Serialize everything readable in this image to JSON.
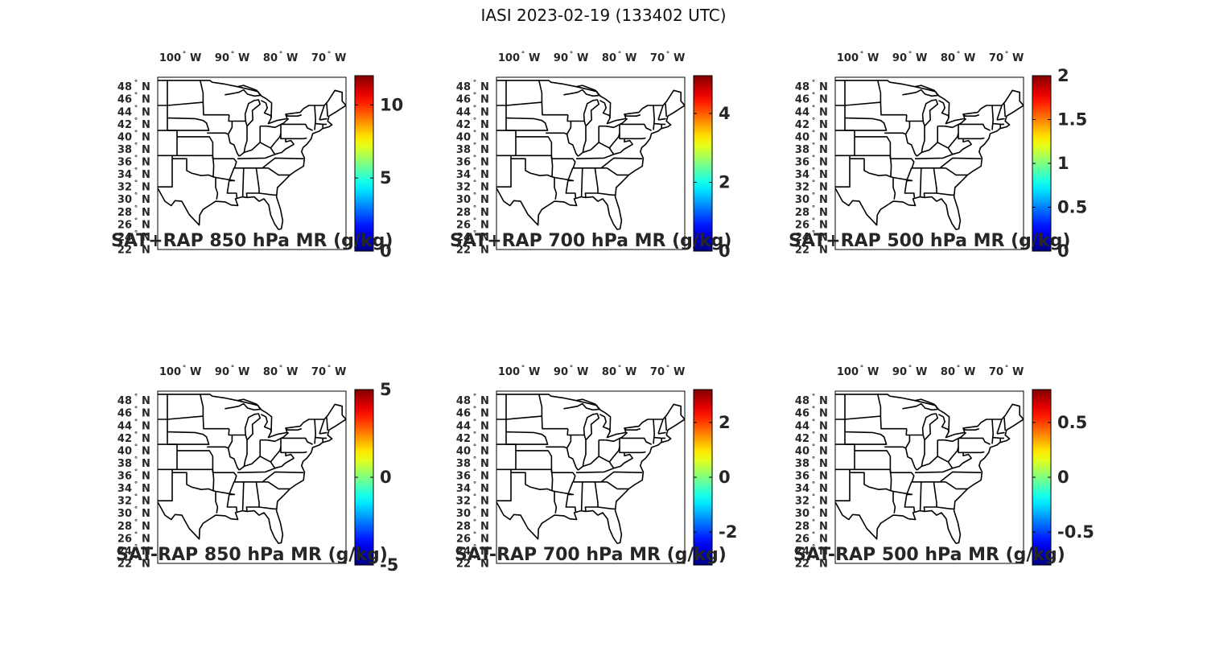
{
  "title": "IASI 2023-02-19 (133402 UTC)",
  "lon_ticks": [
    "100",
    "90",
    "80",
    "70"
  ],
  "lon_suffix": "W",
  "lat_ticks": [
    "48",
    "46",
    "44",
    "42",
    "40",
    "38",
    "36",
    "34",
    "32",
    "30",
    "28",
    "26",
    "24",
    "22"
  ],
  "lat_suffix": "N",
  "degree_symbol": "°",
  "map_extent": {
    "lon": [
      -106,
      -67
    ],
    "lat": [
      22,
      49.5
    ]
  },
  "colormap": "jet",
  "panels": [
    {
      "title": "SAT+RAP 850 hPa MR (g/kg)",
      "cbar": {
        "range": [
          0,
          12
        ],
        "ticks": [
          0,
          5,
          10
        ],
        "labels": [
          "0",
          "5",
          "10"
        ]
      }
    },
    {
      "title": "SAT+RAP 700 hPa MR (g/kg)",
      "cbar": {
        "range": [
          0,
          5.1
        ],
        "ticks": [
          0,
          2,
          4
        ],
        "labels": [
          "0",
          "2",
          "4"
        ]
      }
    },
    {
      "title": "SAT+RAP 500 hPa MR (g/kg)",
      "cbar": {
        "range": [
          0,
          2
        ],
        "ticks": [
          0,
          0.5,
          1,
          1.5,
          2
        ],
        "labels": [
          "0",
          "0.5",
          "1",
          "1.5",
          "2"
        ]
      }
    },
    {
      "title": "SAT-RAP 850 hPa MR (g/kg)",
      "cbar": {
        "range": [
          -5,
          5
        ],
        "ticks": [
          -5,
          0,
          5
        ],
        "labels": [
          "-5",
          "0",
          "5"
        ]
      }
    },
    {
      "title": "SAT-RAP 700 hPa MR (g/kg)",
      "cbar": {
        "range": [
          -3.2,
          3.2
        ],
        "ticks": [
          -2,
          0,
          2
        ],
        "labels": [
          "-2",
          "0",
          "2"
        ]
      }
    },
    {
      "title": "SAT-RAP 500 hPa MR (g/kg)",
      "cbar": {
        "range": [
          -0.8,
          0.8
        ],
        "ticks": [
          -0.5,
          0,
          0.5
        ],
        "labels": [
          "-0.5",
          "0",
          "0.5"
        ]
      }
    }
  ]
}
